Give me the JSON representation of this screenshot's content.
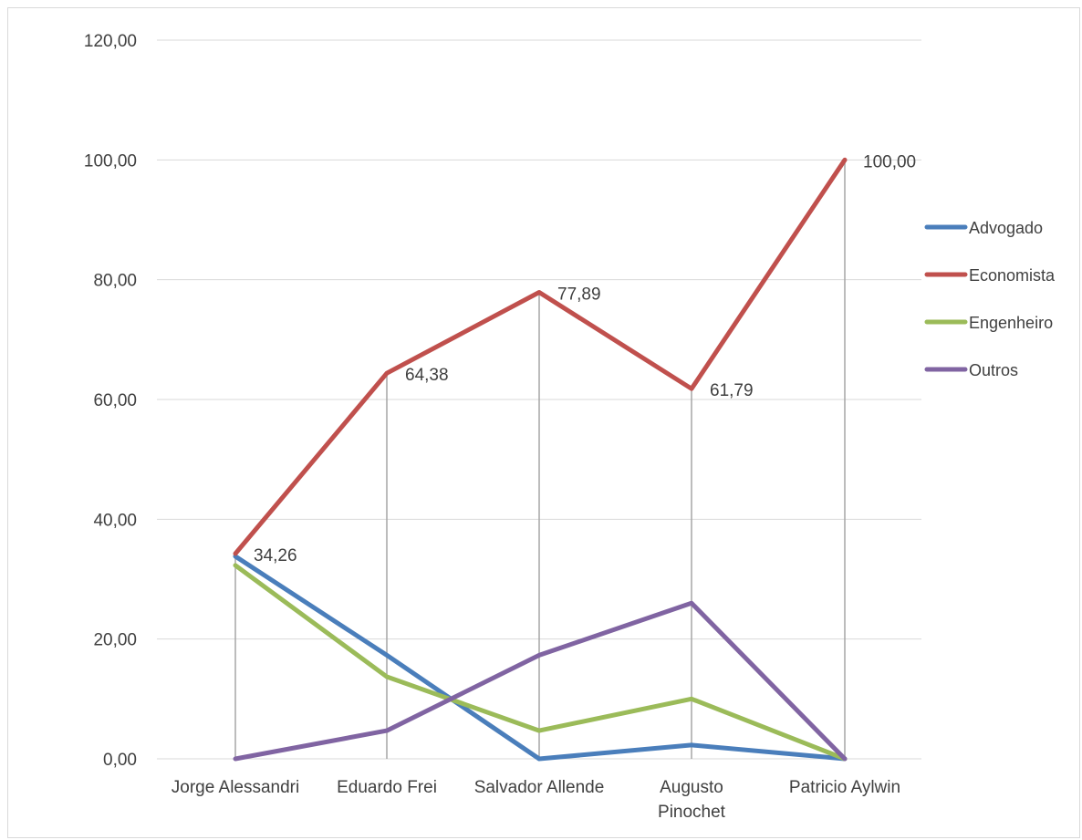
{
  "chart_data": {
    "type": "line",
    "title": "",
    "xlabel": "",
    "ylabel": "",
    "ylim": [
      0,
      120
    ],
    "yticks": [
      "0,00",
      "20,00",
      "40,00",
      "60,00",
      "80,00",
      "100,00",
      "120,00"
    ],
    "ytick_values": [
      0,
      20,
      40,
      60,
      80,
      100,
      120
    ],
    "categories": [
      [
        "Jorge Alessandri"
      ],
      [
        "Eduardo Frei"
      ],
      [
        "Salvador Allende"
      ],
      [
        "Augusto",
        "Pinochet"
      ],
      [
        "Patricio Aylwin"
      ]
    ],
    "grid": "horizontal",
    "drop_lines": true,
    "legend": "right",
    "series": [
      {
        "name": "Advogado",
        "color": "#4a7ebb",
        "values": [
          33.8,
          17.3,
          0.0,
          2.3,
          0.0
        ]
      },
      {
        "name": "Economista",
        "color": "#c0504d",
        "values": [
          34.26,
          64.38,
          77.89,
          61.79,
          100.0
        ]
      },
      {
        "name": "Engenheiro",
        "color": "#9bbb59",
        "values": [
          32.3,
          13.7,
          4.7,
          10.0,
          0.0
        ]
      },
      {
        "name": "Outros",
        "color": "#8064a2",
        "values": [
          0.0,
          4.7,
          17.3,
          26.0,
          0.0
        ]
      }
    ],
    "data_labels": {
      "series": "Economista",
      "labels": [
        "34,26",
        "64,38",
        "77,89",
        "61,79",
        "100,00"
      ]
    }
  }
}
